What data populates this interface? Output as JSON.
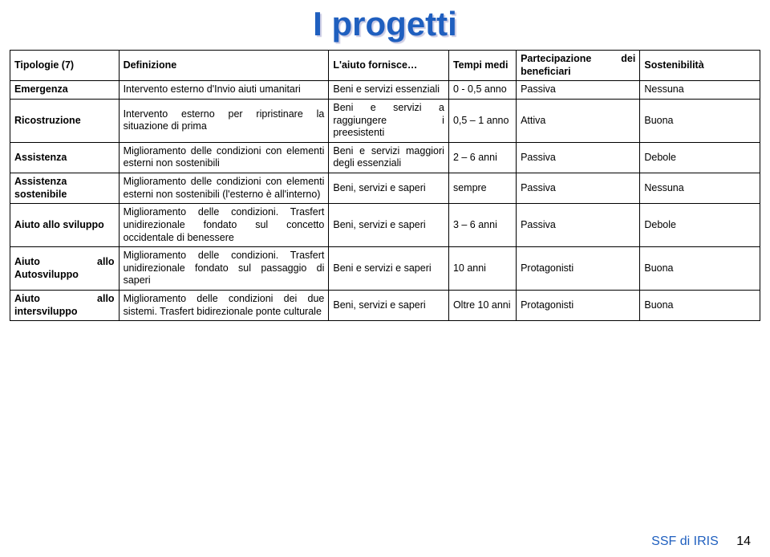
{
  "title": "I progetti",
  "footer_org": "SSF di IRIS",
  "footer_page": "14",
  "columns": {
    "c1": "Tipologie (7)",
    "c2": "Definizione",
    "c3": "L'aiuto fornisce…",
    "c4": "Tempi medi",
    "c5": "Partecipazione dei beneficiari",
    "c6": "Sostenibilità"
  },
  "rows": {
    "r1": {
      "c1": "Emergenza",
      "c2": "Intervento esterno d'Invio aiuti umanitari",
      "c3": "Beni e servizi essenziali",
      "c4": "0 - 0,5 anno",
      "c5": "Passiva",
      "c6": "Nessuna"
    },
    "r2": {
      "c1": "Ricostruzione",
      "c2": "Intervento esterno per ripristinare la situazione di prima",
      "c3": "Beni e servizi a raggiungere i preesistenti",
      "c4": "0,5 – 1 anno",
      "c5": "Attiva",
      "c6": "Buona"
    },
    "r3": {
      "c1": "Assistenza",
      "c2": "Miglioramento delle condizioni con elementi esterni non sostenibili",
      "c3": "Beni e servizi maggiori degli essenziali",
      "c4": "2 – 6 anni",
      "c5": "Passiva",
      "c6": "Debole"
    },
    "r4": {
      "c1": "Assistenza sostenibile",
      "c2": "Miglioramento delle condizioni con elementi esterni non sostenibili (l'esterno è all'interno)",
      "c3": "Beni, servizi e saperi",
      "c4": "sempre",
      "c5": "Passiva",
      "c6": "Nessuna"
    },
    "r5": {
      "c1": "Aiuto allo sviluppo",
      "c2": "Miglioramento delle condizioni. Trasfert unidirezionale fondato sul concetto occidentale di benessere",
      "c3": "Beni, servizi e saperi",
      "c4": "3 – 6 anni",
      "c5": "Passiva",
      "c6": "Debole"
    },
    "r6": {
      "c1": "Aiuto allo Autosviluppo",
      "c2": "Miglioramento delle condizioni. Trasfert unidirezionale fondato sul passaggio di saperi",
      "c3": "Beni e servizi e saperi",
      "c4": "10 anni",
      "c5": "Protagonisti",
      "c6": "Buona"
    },
    "r7": {
      "c1": "Aiuto allo intersviluppo",
      "c2": "Miglioramento delle condizioni dei due sistemi. Trasfert bidirezionale ponte culturale",
      "c3": "Beni, servizi e saperi",
      "c4": "Oltre 10 anni",
      "c5": "Protagonisti",
      "c6": "Buona"
    }
  }
}
